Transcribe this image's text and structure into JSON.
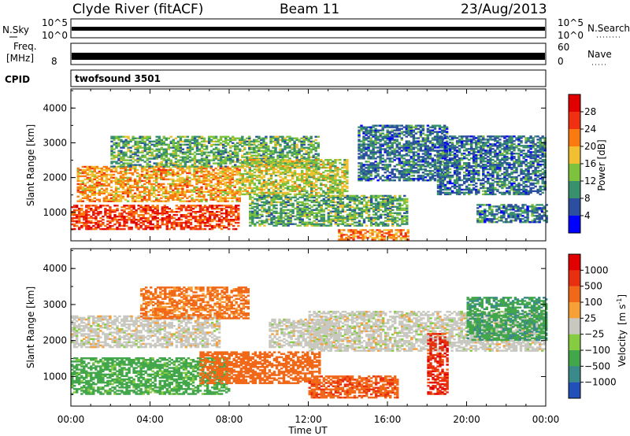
{
  "header": {
    "station": "Clyde River (fitACF)",
    "beam": "Beam 11",
    "date": "23/Aug/2013"
  },
  "param_panels": {
    "nsky_label": "N.Sky",
    "nsky_ticks": [
      "10^5",
      "10^0"
    ],
    "nsearch_label": "N.Search",
    "freq_label_1": "Freq.",
    "freq_label_2": "[MHz]",
    "freq_ticks": [
      "8"
    ],
    "nave_ticks": [
      "60",
      "0"
    ],
    "nave_label": "Nave",
    "cpid_label": "CPID",
    "cpid_value": "twofsound 3501"
  },
  "chart_data": [
    {
      "type": "heatmap",
      "name": "power",
      "xlabel": "Time UT",
      "ylabel": "Slant Range [km]",
      "xlim_hours": [
        0,
        24
      ],
      "ylim": [
        180,
        4550
      ],
      "x_ticks": [
        "00:00",
        "04:00",
        "08:00",
        "12:00",
        "16:00",
        "20:00",
        "00:00"
      ],
      "y_ticks": [
        1000,
        2000,
        3000,
        4000
      ],
      "colorbar": {
        "label": "Power [dB]",
        "tick_values": [
          4,
          8,
          12,
          16,
          20,
          24,
          28
        ],
        "colors": [
          "#0000ff",
          "#2b4ea0",
          "#38906c",
          "#7cc23c",
          "#f0c030",
          "#fa7a10",
          "#f03010",
          "#e00000"
        ]
      },
      "echo_regions": [
        {
          "t_start": 0.0,
          "t_end": 8.5,
          "r_min": 500,
          "r_max": 1200,
          "power_db": 26
        },
        {
          "t_start": 0.3,
          "t_end": 8.5,
          "r_min": 1300,
          "r_max": 2300,
          "power_db": 20
        },
        {
          "t_start": 2.0,
          "t_end": 12.5,
          "r_min": 2300,
          "r_max": 3200,
          "power_db": 12
        },
        {
          "t_start": 8.5,
          "t_end": 14.0,
          "r_min": 1500,
          "r_max": 2500,
          "power_db": 16
        },
        {
          "t_start": 9.0,
          "t_end": 17.0,
          "r_min": 600,
          "r_max": 1500,
          "power_db": 12
        },
        {
          "t_start": 13.5,
          "t_end": 17.0,
          "r_min": 200,
          "r_max": 500,
          "power_db": 22
        },
        {
          "t_start": 14.5,
          "t_end": 19.0,
          "r_min": 1900,
          "r_max": 3500,
          "power_db": 8
        },
        {
          "t_start": 18.5,
          "t_end": 24.0,
          "r_min": 1500,
          "r_max": 3200,
          "power_db": 8
        },
        {
          "t_start": 20.5,
          "t_end": 24.0,
          "r_min": 700,
          "r_max": 1200,
          "power_db": 8
        }
      ]
    },
    {
      "type": "heatmap",
      "name": "velocity",
      "xlabel": "Time UT",
      "ylabel": "Slant Range [km]",
      "xlim_hours": [
        0,
        24
      ],
      "ylim": [
        180,
        4550
      ],
      "x_ticks": [
        "00:00",
        "04:00",
        "08:00",
        "12:00",
        "16:00",
        "20:00",
        "00:00"
      ],
      "y_ticks": [
        1000,
        2000,
        3000,
        4000
      ],
      "colorbar": {
        "label": "Velocity",
        "label_unit": "[m s",
        "label_sup": "-1",
        "label_close": "]",
        "tick_labels": [
          "1000",
          "500",
          "100",
          "25",
          "−25",
          "−100",
          "−500",
          "−1000"
        ],
        "colors": [
          "#2050b8",
          "#3a8a8a",
          "#42a64a",
          "#86cc40",
          "#c8c8c0",
          "#f8a038",
          "#f06818",
          "#e83010",
          "#e00000"
        ]
      },
      "echo_regions": [
        {
          "t_start": 0.0,
          "t_end": 7.5,
          "r_min": 1800,
          "r_max": 2700,
          "velocity": 0
        },
        {
          "t_start": 0.0,
          "t_end": 8.0,
          "r_min": 500,
          "r_max": 1500,
          "velocity": 200
        },
        {
          "t_start": 3.5,
          "t_end": 9.0,
          "r_min": 2600,
          "r_max": 3500,
          "velocity": -150
        },
        {
          "t_start": 6.5,
          "t_end": 12.5,
          "r_min": 800,
          "r_max": 1700,
          "velocity": -300
        },
        {
          "t_start": 10.0,
          "t_end": 13.5,
          "r_min": 1800,
          "r_max": 2600,
          "velocity": 0
        },
        {
          "t_start": 12.0,
          "t_end": 16.5,
          "r_min": 400,
          "r_max": 1000,
          "velocity": -400
        },
        {
          "t_start": 12.0,
          "t_end": 24.0,
          "r_min": 1700,
          "r_max": 2800,
          "velocity": 0
        },
        {
          "t_start": 18.0,
          "t_end": 19.0,
          "r_min": 500,
          "r_max": 2200,
          "velocity": -800
        },
        {
          "t_start": 20.0,
          "t_end": 24.0,
          "r_min": 2000,
          "r_max": 3200,
          "velocity": 400
        }
      ]
    }
  ]
}
